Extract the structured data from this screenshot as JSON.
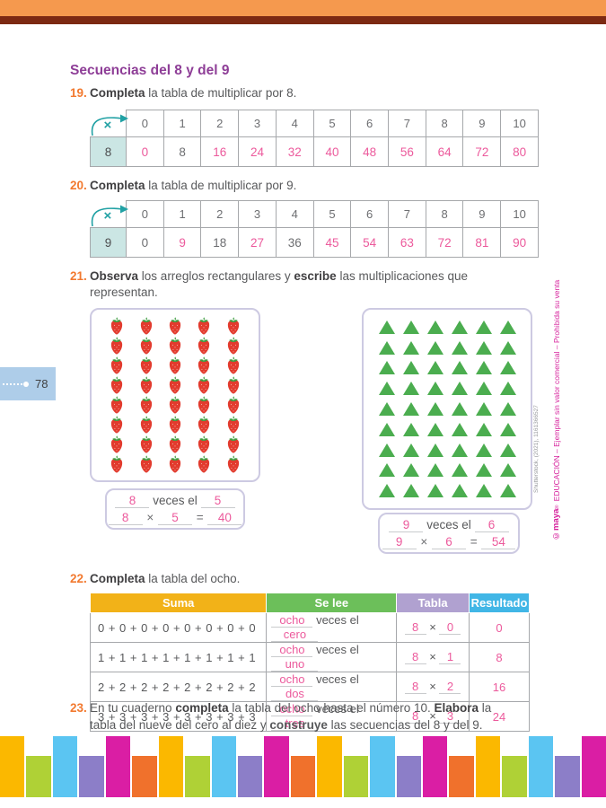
{
  "page_number": "78",
  "title": "Secuencias del 8 y del 9",
  "exercises": {
    "e19": {
      "num": "19.",
      "bold": "Completa",
      "rest": " la tabla de multiplicar por 8."
    },
    "e20": {
      "num": "20.",
      "bold": "Completa",
      "rest": " la tabla de multiplicar por 9."
    },
    "e21": {
      "num": "21.",
      "bold1": "Observa",
      "mid": " los arreglos rectangulares y ",
      "bold2": "escribe",
      "rest": " las multiplicaciones que",
      "line2": "representan."
    },
    "e22": {
      "num": "22.",
      "bold": "Completa",
      "rest": " la tabla del ocho."
    },
    "e23": {
      "num": "23.",
      "s1": "En tu cuaderno ",
      "b1": "completa",
      "s2": " la tabla del ocho hasta el número 10. ",
      "b2": "Elabora",
      "s3": " la",
      "l2s1": "tabla del nueve del cero al diez y ",
      "l2b1": "construye",
      "l2s2": " las secuencias del 8 y del 9."
    }
  },
  "mult_tables": [
    {
      "corner": "×",
      "cols": [
        "0",
        "1",
        "2",
        "3",
        "4",
        "5",
        "6",
        "7",
        "8",
        "9",
        "10"
      ],
      "factor": "8",
      "values": [
        "0",
        "8",
        "16",
        "24",
        "32",
        "40",
        "48",
        "56",
        "64",
        "72",
        "80"
      ],
      "printed": [
        1
      ]
    },
    {
      "corner": "×",
      "cols": [
        "0",
        "1",
        "2",
        "3",
        "4",
        "5",
        "6",
        "7",
        "8",
        "9",
        "10"
      ],
      "factor": "9",
      "values": [
        "0",
        "9",
        "18",
        "27",
        "36",
        "45",
        "54",
        "63",
        "72",
        "81",
        "90"
      ],
      "printed": [
        0,
        2,
        4
      ]
    }
  ],
  "arrays": {
    "strawberries": {
      "rows": 8,
      "cols": 5
    },
    "triangles": {
      "rows": 9,
      "cols": 6
    },
    "answer1": {
      "count": "8",
      "unit": "5",
      "f1": "8",
      "f2": "5",
      "product": "40"
    },
    "answer2": {
      "count": "9",
      "unit": "6",
      "f1": "9",
      "f2": "6",
      "product": "54"
    },
    "veces_label": "veces el",
    "times": "×",
    "equals": "="
  },
  "tabla_ocho": {
    "headers": [
      {
        "label": "Suma",
        "color": "#F2B218"
      },
      {
        "label": "Se lee",
        "color": "#6CBF5A"
      },
      {
        "label": "Tabla",
        "color": "#B0A1D0"
      },
      {
        "label": "Resultado",
        "color": "#41B6E6"
      }
    ],
    "veces_label": "veces el",
    "times": "×",
    "rows": [
      {
        "suma": "0 + 0 + 0 + 0 + 0 + 0 + 0 + 0",
        "word1": "ocho",
        "word2": "cero",
        "f1": "8",
        "f2": "0",
        "resultado": "0"
      },
      {
        "suma": "1 + 1 + 1 + 1 + 1 + 1 + 1 + 1",
        "word1": "ocho",
        "word2": "uno",
        "f1": "8",
        "f2": "1",
        "resultado": "8"
      },
      {
        "suma": "2 + 2 + 2 + 2 + 2 + 2 + 2 + 2",
        "word1": "ocho",
        "word2": "dos",
        "f1": "8",
        "f2": "2",
        "resultado": "16"
      },
      {
        "suma": "3 + 3 + 3 + 3 + 3 + 3 + 3 + 3",
        "word1": "ocho",
        "word2": "tres",
        "f1": "8",
        "f2": "3",
        "resultado": "24"
      }
    ]
  },
  "credits": {
    "brand": "©maya",
    "brand_mark": "®",
    "legal": " EDUCACIÓN – Ejemplar sin valor comercial – Prohibida su venta",
    "photo": "Shutterstock, (2021), 1161366527"
  },
  "footer": {
    "colors": [
      "#FBB800",
      "#AFD136",
      "#5BC5F2",
      "#8C7EC8",
      "#DA1EA4",
      "#F0712C"
    ],
    "count": 23
  },
  "colors": {
    "answer-pink": "#EC5A9C",
    "title-purple": "#8E3E97",
    "number-orange": "#F2792F",
    "body-gray": "#58595B",
    "table-line": "#A6A8AB",
    "teal": "#21A1A4",
    "teal-bg": "#CBE6E4",
    "box-border": "#CDCAE2",
    "top-orange": "#F5994E",
    "top-maroon": "#7C2912",
    "badge-blue": "#AECDE9",
    "legal-pink": "#D6219C",
    "strawberry-red": "#E23B2E",
    "leaf-green": "#3E9E41",
    "triangle-green": "#4BAD4F"
  }
}
